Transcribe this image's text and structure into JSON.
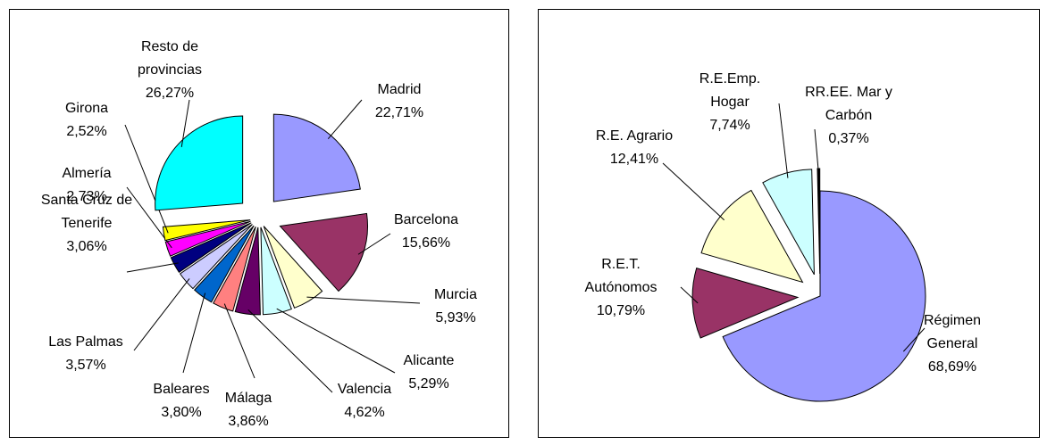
{
  "chart_data": [
    {
      "type": "pie",
      "categories": [
        "Madrid",
        "Barcelona",
        "Murcia",
        "Alicante",
        "Valencia",
        "Málaga",
        "Baleares",
        "Las Palmas",
        "Santa Cruz de Tenerife",
        "Almería",
        "Girona",
        "Resto de provincias"
      ],
      "values": [
        22.71,
        15.66,
        5.93,
        5.29,
        4.62,
        3.86,
        3.8,
        3.57,
        3.06,
        2.73,
        2.52,
        26.27
      ],
      "value_labels": [
        "22,71%",
        "15,66%",
        "5,93%",
        "5,29%",
        "4,62%",
        "3,86%",
        "3,80%",
        "3,57%",
        "3,06%",
        "2,73%",
        "2,52%",
        "26,27%"
      ],
      "colors": [
        "#9999ff",
        "#993366",
        "#ffffcc",
        "#ccffff",
        "#660066",
        "#ff8080",
        "#0066cc",
        "#ccccff",
        "#000080",
        "#ff00ff",
        "#ffff00",
        "#00ffff"
      ]
    },
    {
      "type": "pie",
      "categories": [
        "Régimen General",
        "R.E.T. Autónomos",
        "R.E. Agrario",
        "R.E.Emp. Hogar",
        "RR.EE. Mar y Carbón"
      ],
      "values": [
        68.69,
        10.79,
        12.41,
        7.74,
        0.37
      ],
      "value_labels": [
        "68,69%",
        "10,79%",
        "12,41%",
        "7,74%",
        "0,37%"
      ],
      "colors": [
        "#9999ff",
        "#993366",
        "#ffffcc",
        "#ccffff",
        "#000000"
      ]
    }
  ]
}
